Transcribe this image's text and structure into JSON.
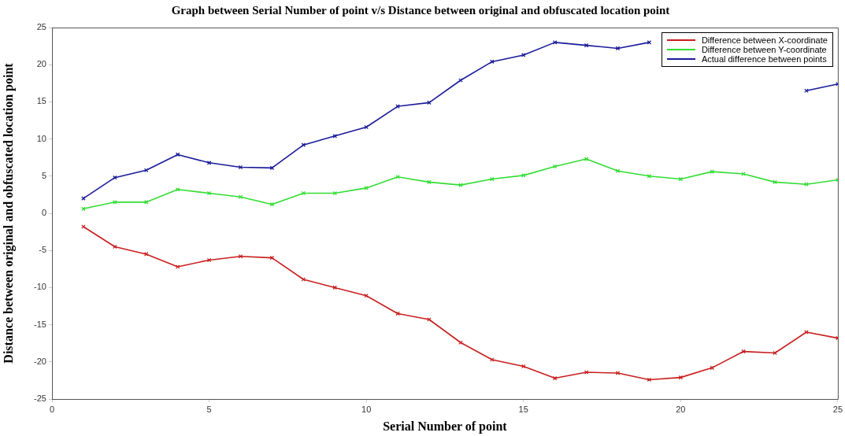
{
  "chart_data": {
    "type": "line",
    "title": "Graph between Serial Number of point v/s Distance between original and obfuscated location point",
    "xlabel": "Serial Number of point",
    "ylabel": "Distance between original and obfuscated location point",
    "x": [
      1,
      2,
      3,
      4,
      5,
      6,
      7,
      8,
      9,
      10,
      11,
      12,
      13,
      14,
      15,
      16,
      17,
      18,
      19,
      20,
      21,
      22,
      23,
      24,
      25
    ],
    "series": [
      {
        "name": "Difference between X-coordinate",
        "color": "#c81e1e",
        "values": [
          -1.8,
          -4.5,
          -5.5,
          -7.2,
          -6.3,
          -5.8,
          -6.0,
          -8.9,
          -10.0,
          -11.1,
          -13.5,
          -14.3,
          -17.4,
          -19.7,
          -20.6,
          -22.2,
          -21.4,
          -21.5,
          -22.4,
          -22.1,
          -20.8,
          -18.6,
          -18.8,
          -16.0,
          -16.8
        ]
      },
      {
        "name": "Difference between Y-coordinate",
        "color": "#33dd33",
        "values": [
          0.6,
          1.5,
          1.5,
          3.2,
          2.7,
          2.2,
          1.2,
          2.7,
          2.7,
          3.4,
          4.9,
          4.2,
          3.8,
          4.6,
          5.1,
          6.3,
          7.3,
          5.7,
          5.0,
          4.6,
          5.6,
          5.3,
          4.2,
          3.9,
          4.5
        ]
      },
      {
        "name": "Actual difference between points",
        "color": "#1a1a9a",
        "values": [
          2.0,
          4.8,
          5.8,
          7.9,
          6.8,
          6.2,
          6.1,
          9.2,
          10.4,
          11.6,
          14.4,
          14.9,
          17.9,
          20.4,
          21.3,
          23.0,
          22.6,
          22.2,
          23.0,
          null,
          null,
          null,
          null,
          16.5,
          17.4
        ]
      }
    ],
    "xlim": [
      0,
      25
    ],
    "xticks": [
      0,
      5,
      10,
      15,
      20,
      25
    ],
    "ylim": [
      -25,
      25
    ],
    "yticks": [
      -25,
      -20,
      -15,
      -10,
      -5,
      0,
      5,
      10,
      15,
      20,
      25
    ],
    "legend": "top right",
    "marker": "cross",
    "line_style": "solid"
  }
}
